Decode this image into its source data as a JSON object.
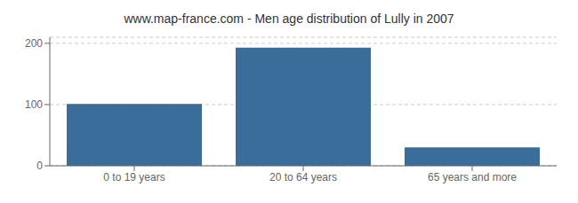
{
  "chart_data": {
    "type": "bar",
    "title": "www.map-france.com - Men age distribution of Lully in 2007",
    "categories": [
      "0 to 19 years",
      "20 to 64 years",
      "65 years and more"
    ],
    "values": [
      101,
      193,
      30
    ],
    "color": "#3a6d9a",
    "ylim": [
      0,
      210
    ],
    "yticks": [
      0,
      100,
      200
    ],
    "grid": true
  }
}
